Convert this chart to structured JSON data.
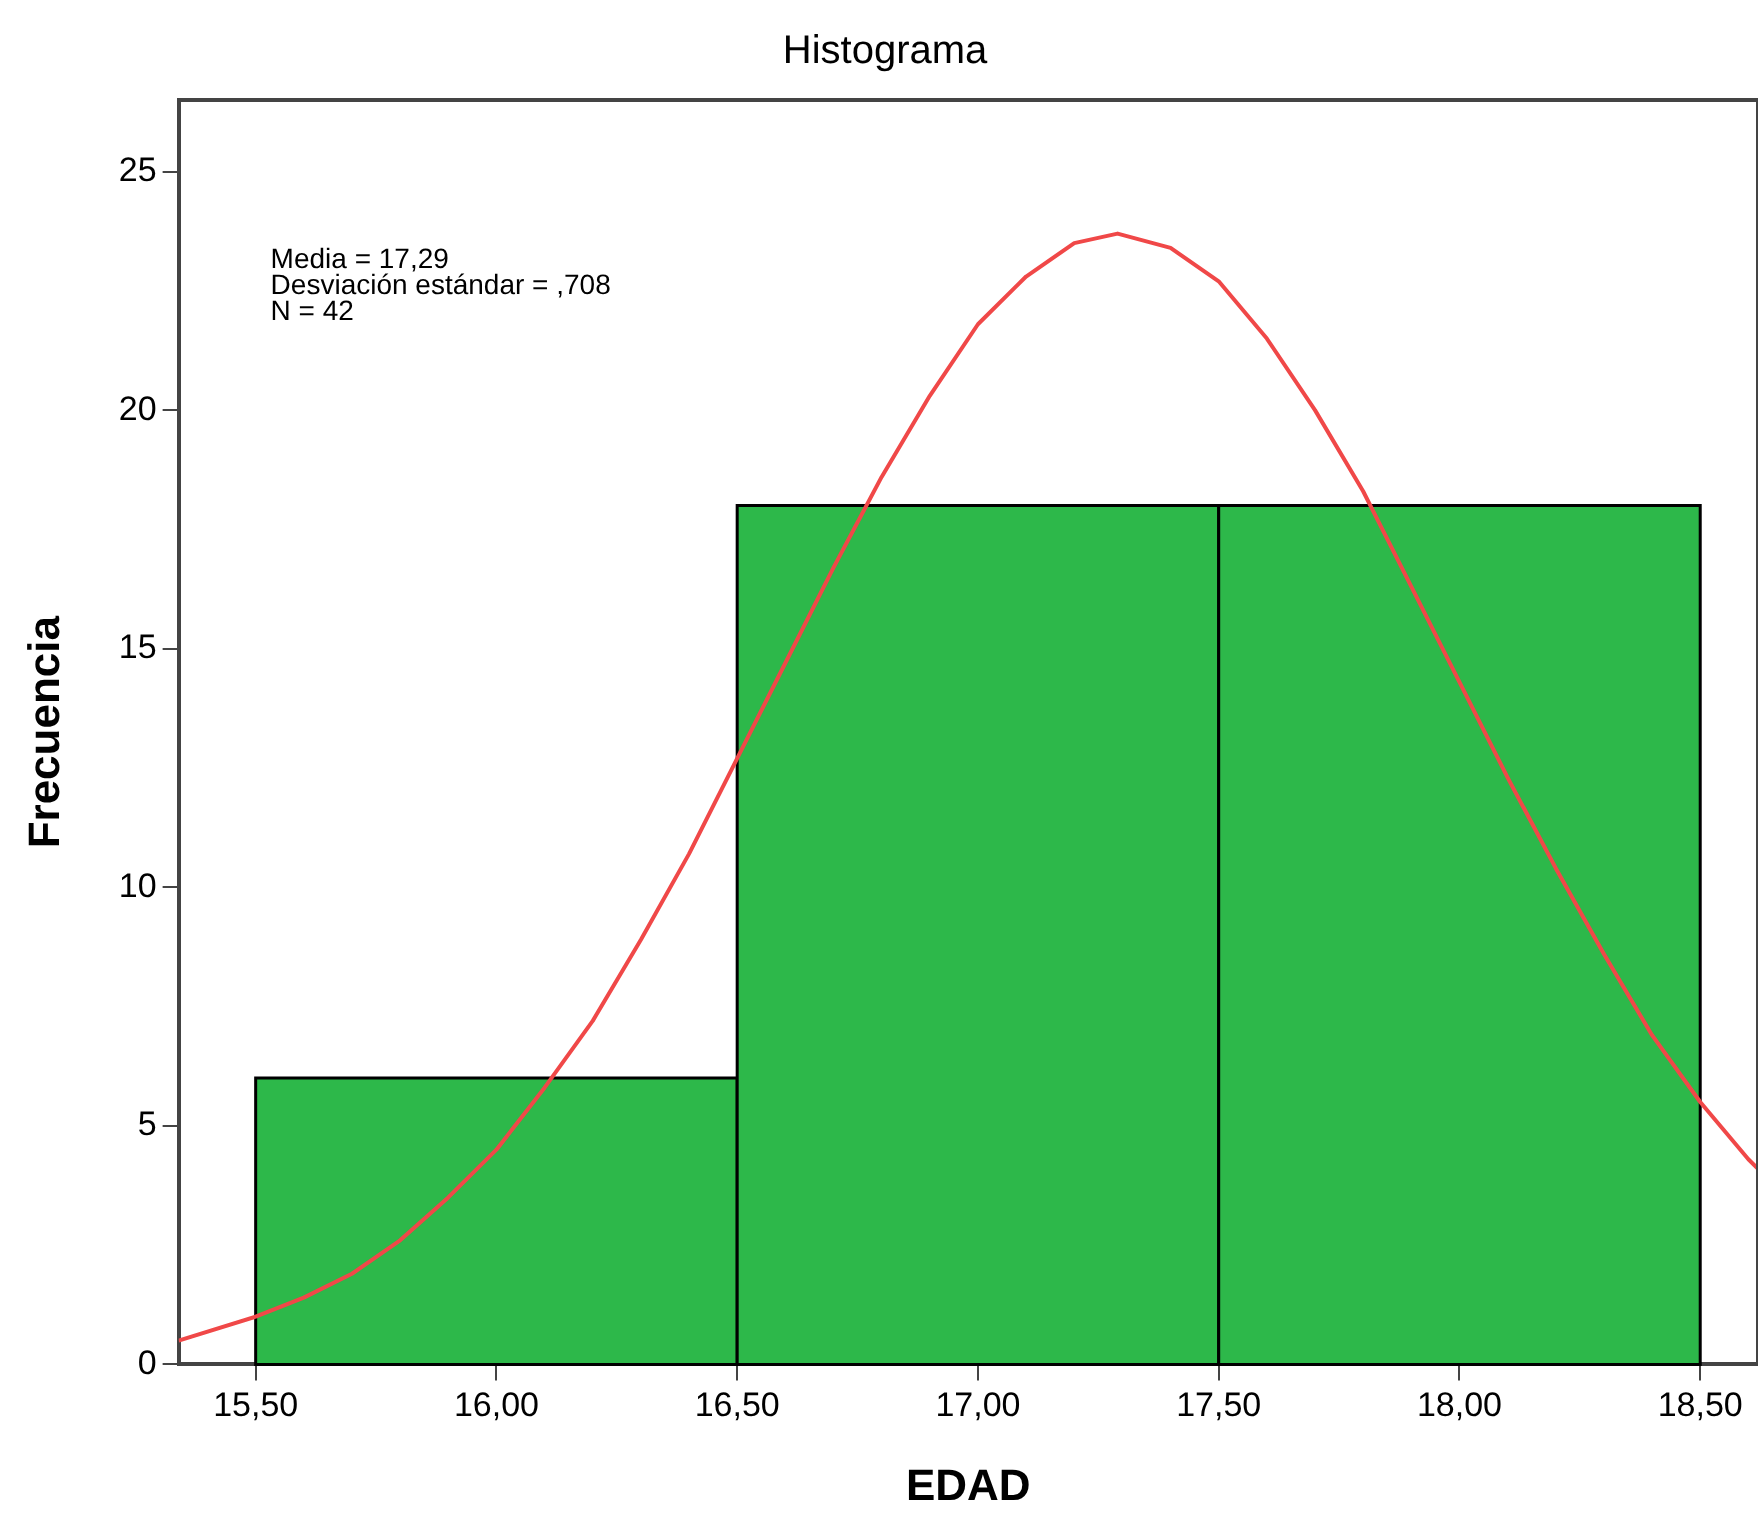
{
  "chart_data": {
    "type": "histogram",
    "title": "Histograma",
    "xlabel": "EDAD",
    "ylabel": "Frecuencia",
    "bins": [
      15.5,
      16.5,
      17.5,
      18.5
    ],
    "values": [
      6,
      18,
      18
    ],
    "color": "#2db84a",
    "series": [
      {
        "type": "line",
        "color": "#f04848",
        "marker": "none",
        "x": [
          15.34,
          15.5,
          15.6,
          15.7,
          15.8,
          15.9,
          16.0,
          16.1,
          16.2,
          16.3,
          16.4,
          16.5,
          16.6,
          16.7,
          16.8,
          16.9,
          17.0,
          17.1,
          17.2,
          17.29,
          17.4,
          17.5,
          17.6,
          17.7,
          17.8,
          17.9,
          18.0,
          18.1,
          18.2,
          18.3,
          18.4,
          18.5,
          18.6,
          18.62
        ],
        "values": [
          0.5,
          1.0,
          1.4,
          1.9,
          2.6,
          3.5,
          4.5,
          5.8,
          7.2,
          8.9,
          10.7,
          12.7,
          14.7,
          16.7,
          18.6,
          20.3,
          21.8,
          22.8,
          23.5,
          23.7,
          23.4,
          22.7,
          21.5,
          20.0,
          18.3,
          16.3,
          14.3,
          12.3,
          10.4,
          8.6,
          6.9,
          5.5,
          4.3,
          4.1
        ]
      }
    ],
    "xlim": [
      15.34,
      18.62
    ],
    "xticks": [
      {
        "value": 15.5,
        "label": "15,50"
      },
      {
        "value": 16,
        "label": "16,00"
      },
      {
        "value": 16.5,
        "label": "16,50"
      },
      {
        "value": 17,
        "label": "17,00"
      },
      {
        "value": 17.5,
        "label": "17,50"
      },
      {
        "value": 18,
        "label": "18,00"
      },
      {
        "value": 18.5,
        "label": "18,50"
      }
    ],
    "ylim": [
      0,
      26.5
    ],
    "yticks": [
      0,
      5,
      10,
      15,
      20,
      25
    ],
    "grid": false,
    "legend": false,
    "annotations": [
      "Media = 17,29",
      "Desviación estándar = ,708",
      "N = 42"
    ]
  }
}
